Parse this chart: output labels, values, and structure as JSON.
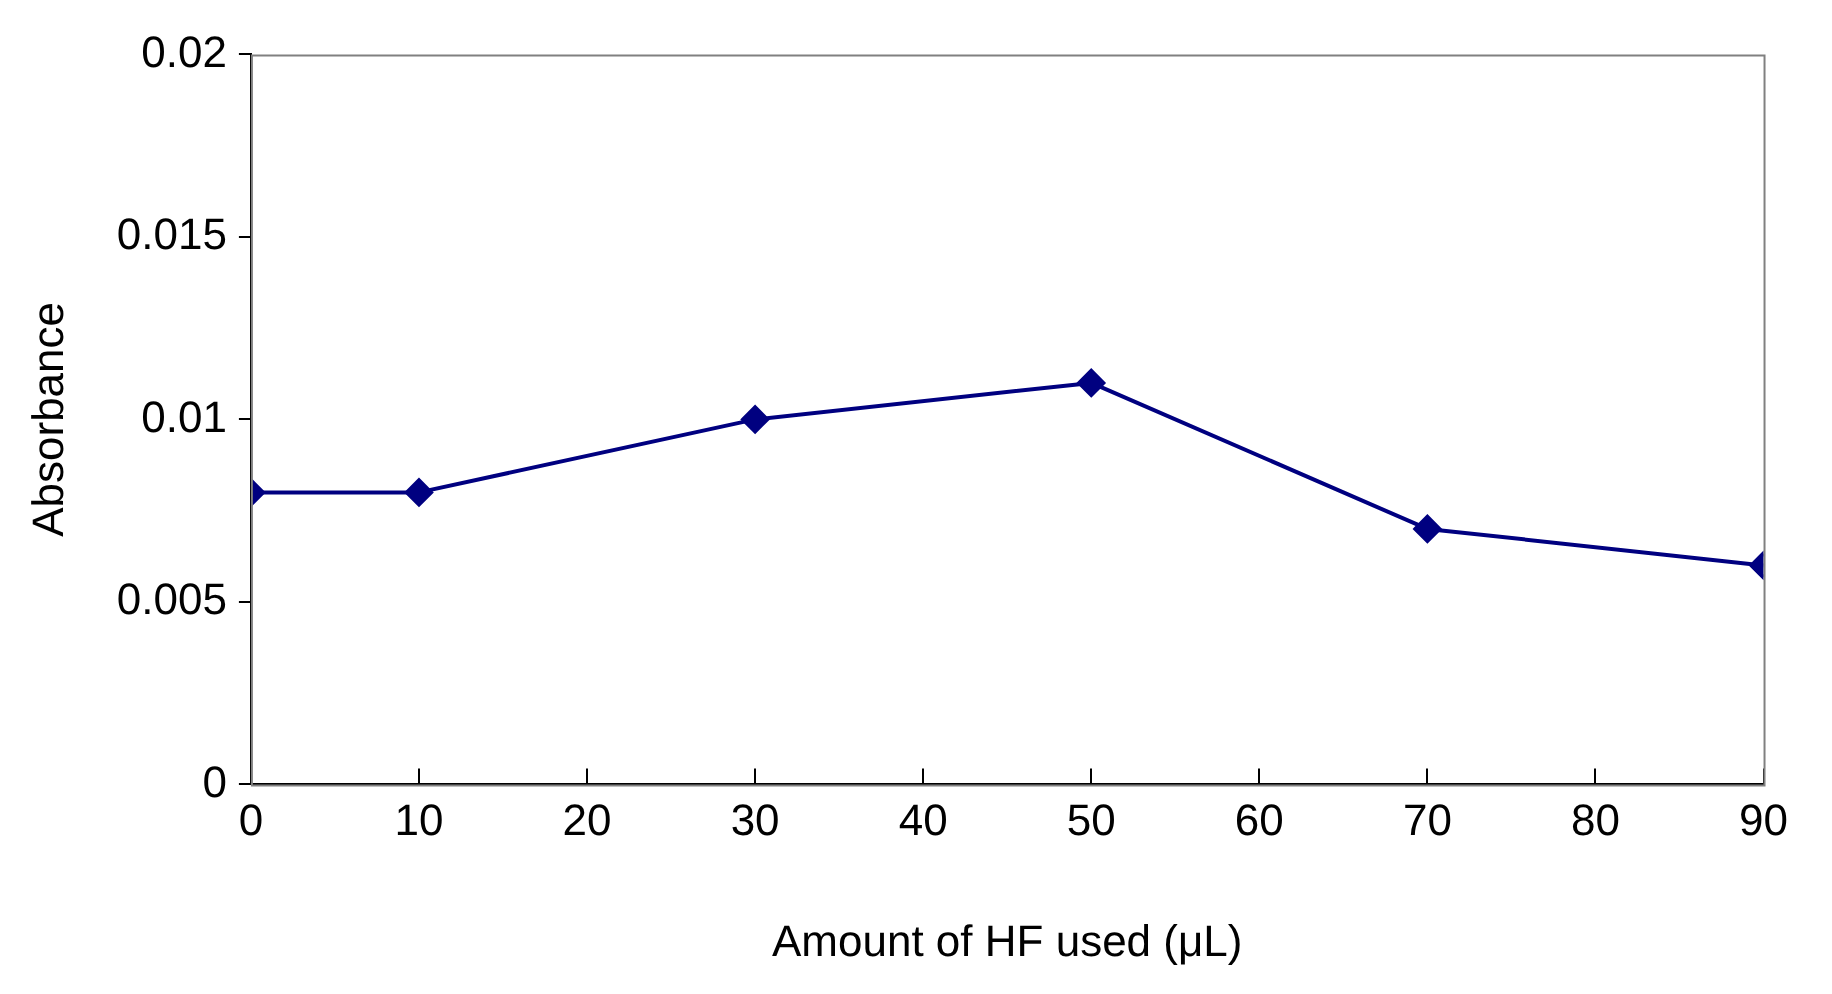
{
  "chart_data": {
    "type": "line",
    "xlabel": "Amount of HF used (μL)",
    "ylabel": "Absorbance",
    "x": [
      0,
      10,
      30,
      50,
      70,
      90
    ],
    "series": [
      {
        "color": "#000080",
        "values": [
          0.008,
          0.008,
          0.01,
          0.011,
          0.007,
          0.006
        ]
      }
    ],
    "xlim": [
      0,
      90
    ],
    "xticks": [
      0,
      10,
      20,
      30,
      40,
      50,
      60,
      70,
      80,
      90
    ],
    "ylim": [
      0,
      0.02
    ],
    "yticks": [
      0,
      0.005,
      0.01,
      0.015,
      0.02
    ],
    "grid": false,
    "legend": false,
    "marker": "diamond",
    "line_style": "solid"
  }
}
